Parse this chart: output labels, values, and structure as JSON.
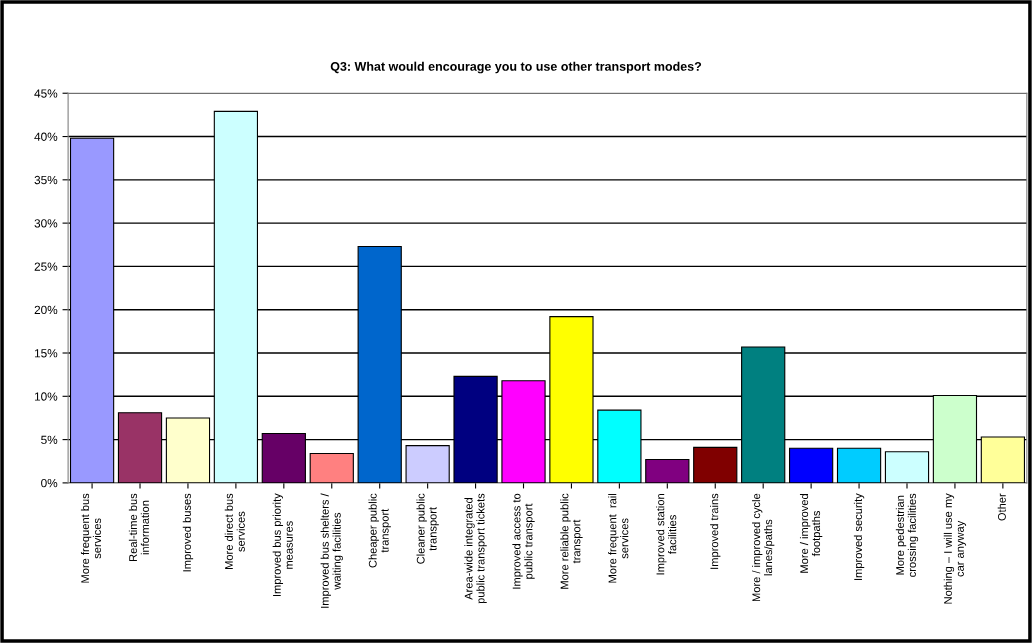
{
  "chart_data": {
    "type": "bar",
    "title": "Q3: What would encourage you to use other transport modes?",
    "categories": [
      "More frequent bus\nservices",
      "Real-time bus\ninformation",
      "Improved buses",
      "More direct bus\nservices",
      "Improved bus priority\nmeasures",
      "Improved bus shelters /\nwaiting facilities",
      "Cheaper public\ntransport",
      "Cleaner public\ntransport",
      "Area-wide integrated\npublic transport tickets",
      "Improved access to\npublic transport",
      "More reliable public\ntransport",
      "More frequent  rail\nservices",
      "Improved station\nfacilities",
      "Improved trains",
      "More / improved cycle\nlanes/paths",
      "More / improved\nfootpaths",
      "Improved security",
      "More pedestrian\ncrossing facilities",
      "Nothing – I will use my\ncar anyway",
      "Other"
    ],
    "values": [
      39.8,
      8.1,
      7.5,
      42.9,
      5.7,
      3.4,
      27.3,
      4.3,
      12.3,
      11.8,
      19.2,
      8.4,
      2.7,
      4.1,
      15.7,
      4.0,
      4.0,
      3.6,
      10.1,
      5.3
    ],
    "colors": [
      "#9999ff",
      "#993366",
      "#ffffcc",
      "#ccffff",
      "#660066",
      "#ff8080",
      "#0066cc",
      "#ccccff",
      "#000080",
      "#ff00ff",
      "#ffff00",
      "#00ffff",
      "#800080",
      "#800000",
      "#008080",
      "#0000ff",
      "#00ccff",
      "#ccffff",
      "#ccffcc",
      "#ffff99"
    ],
    "ylim": [
      0,
      45
    ],
    "yticks": [
      {
        "value": 0,
        "label": "0%"
      },
      {
        "value": 5,
        "label": "5%"
      },
      {
        "value": 10,
        "label": "10%"
      },
      {
        "value": 15,
        "label": "15%"
      },
      {
        "value": 20,
        "label": "20%"
      },
      {
        "value": 25,
        "label": "25%"
      },
      {
        "value": 30,
        "label": "30%"
      },
      {
        "value": 35,
        "label": "35%"
      },
      {
        "value": 40,
        "label": "40%"
      },
      {
        "value": 45,
        "label": "45%"
      }
    ],
    "grid": "y",
    "legend": false
  }
}
